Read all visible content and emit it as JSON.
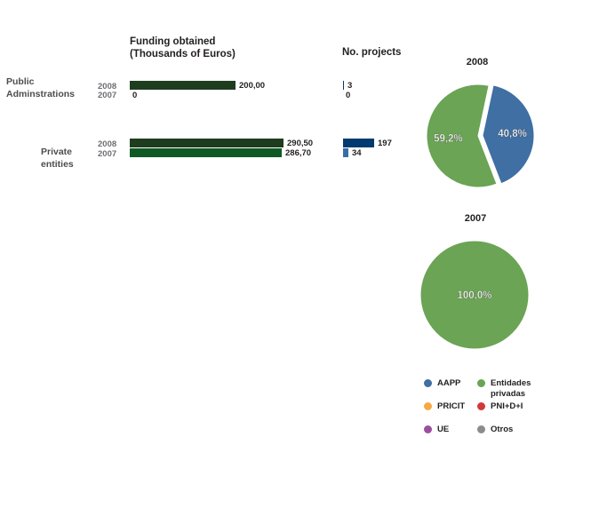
{
  "chart_data": [
    {
      "type": "bar",
      "orientation": "horizontal",
      "title": "Funding obtained\n(Thousands of Euros)",
      "categories": [
        "Public\nAdminstrations",
        "Private\nentities"
      ],
      "series": [
        {
          "name": "2008",
          "values": [
            200.0,
            290.5
          ],
          "labels": [
            "200,00",
            "290,50"
          ],
          "color": "#1e3d1f"
        },
        {
          "name": "2007",
          "values": [
            0,
            286.7
          ],
          "labels": [
            "0",
            "286,70"
          ],
          "color": "#0f5a24"
        }
      ],
      "xlim": [
        0,
        290.5
      ]
    },
    {
      "type": "bar",
      "orientation": "horizontal",
      "title": "No. projects",
      "categories": [
        "Public\nAdminstrations",
        "Private\nentities"
      ],
      "series": [
        {
          "name": "2008",
          "values": [
            3,
            197
          ],
          "labels": [
            "3",
            "197"
          ],
          "color": "#003a70"
        },
        {
          "name": "2007",
          "values": [
            0,
            34
          ],
          "labels": [
            "0",
            "34"
          ],
          "color": "#3a6ea5"
        }
      ],
      "xlim": [
        0,
        197
      ]
    },
    {
      "type": "pie",
      "title": "2008",
      "slices": [
        {
          "label": "AAPP",
          "value": 40.8,
          "text": "40,8%",
          "color": "#3f6fa3",
          "exploded": true
        },
        {
          "label": "Entidades privadas",
          "value": 59.2,
          "text": "59,2%",
          "color": "#6aa454",
          "exploded": false
        }
      ]
    },
    {
      "type": "pie",
      "title": "2007",
      "slices": [
        {
          "label": "Entidades privadas",
          "value": 100.0,
          "text": "100,0%",
          "color": "#6aa454",
          "exploded": false
        }
      ]
    }
  ],
  "legend": [
    {
      "label": "AAPP",
      "color": "#3f6fa3"
    },
    {
      "label": "Entidades\nprivadas",
      "color": "#6aa454"
    },
    {
      "label": "PRICIT",
      "color": "#f7a941"
    },
    {
      "label": "PNI+D+I",
      "color": "#d03a3a"
    },
    {
      "label": "UE",
      "color": "#9b4ea0"
    },
    {
      "label": "Otros",
      "color": "#8c8c8c"
    }
  ]
}
